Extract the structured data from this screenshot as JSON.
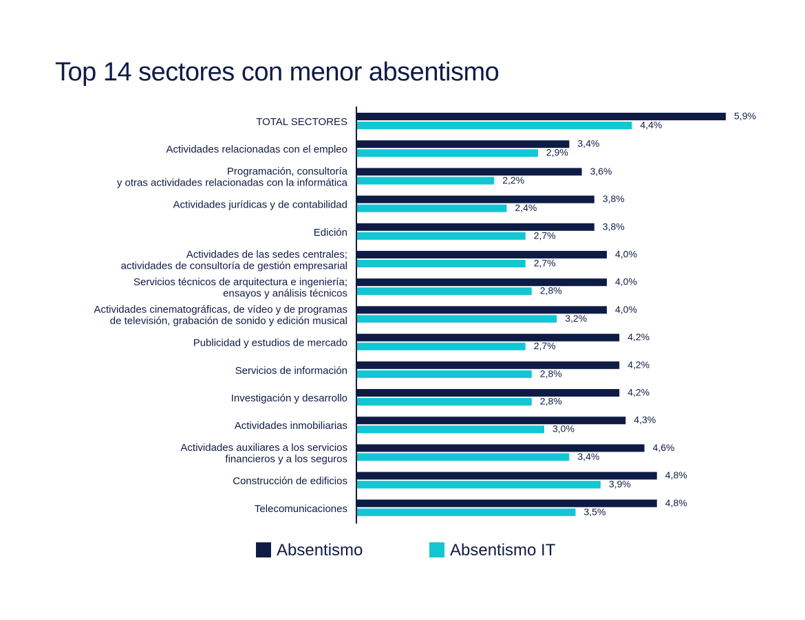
{
  "chart_data": {
    "type": "bar",
    "orientation": "horizontal",
    "title": "Top 14 sectores con menor absentismo",
    "categories": [
      [
        "TOTAL SECTORES"
      ],
      [
        "Actividades relacionadas con el empleo"
      ],
      [
        "Programación, consultoría",
        "y otras actividades relacionadas con la informática"
      ],
      [
        "Actividades jurídicas y de contabilidad"
      ],
      [
        "Edición"
      ],
      [
        "Actividades de las sedes centrales;",
        "actividades de consultoría de gestión empresarial"
      ],
      [
        "Servicios técnicos de arquitectura e ingeniería;",
        "ensayos y análisis técnicos"
      ],
      [
        "Actividades cinematográficas, de vídeo y de programas",
        "de televisión, grabación de sonido y edición musical"
      ],
      [
        "Publicidad y estudios de mercado"
      ],
      [
        "Servicios de información"
      ],
      [
        "Investigación y desarrollo"
      ],
      [
        "Actividades inmobiliarias"
      ],
      [
        "Actividades auxiliares a los servicios",
        "financieros y a los seguros"
      ],
      [
        "Construcción de edificios"
      ],
      [
        "Telecomunicaciones"
      ]
    ],
    "series": [
      {
        "name": "Absentismo",
        "color": "#0e1b45",
        "values": [
          5.9,
          3.4,
          3.6,
          3.8,
          3.8,
          4.0,
          4.0,
          4.0,
          4.2,
          4.2,
          4.2,
          4.3,
          4.6,
          4.8,
          4.8
        ],
        "labels": [
          "5,9%",
          "3,4%",
          "3,6%",
          "3,8%",
          "3,8%",
          "4,0%",
          "4,0%",
          "4,0%",
          "4,2%",
          "4,2%",
          "4,2%",
          "4,3%",
          "4,6%",
          "4,8%",
          "4,8%"
        ]
      },
      {
        "name": "Absentismo IT",
        "color": "#12c6d4",
        "values": [
          4.4,
          2.9,
          2.2,
          2.4,
          2.7,
          2.7,
          2.8,
          3.2,
          2.7,
          2.8,
          2.8,
          3.0,
          3.4,
          3.9,
          3.5
        ],
        "labels": [
          "4,4%",
          "2,9%",
          "2,2%",
          "2,4%",
          "2,7%",
          "2,7%",
          "2,8%",
          "3,2%",
          "2,7%",
          "2,8%",
          "2,8%",
          "3,0%",
          "3,4%",
          "3,9%",
          "3,5%"
        ]
      }
    ],
    "xlim": [
      0,
      6
    ],
    "grid": false,
    "legend_position": "bottom"
  }
}
